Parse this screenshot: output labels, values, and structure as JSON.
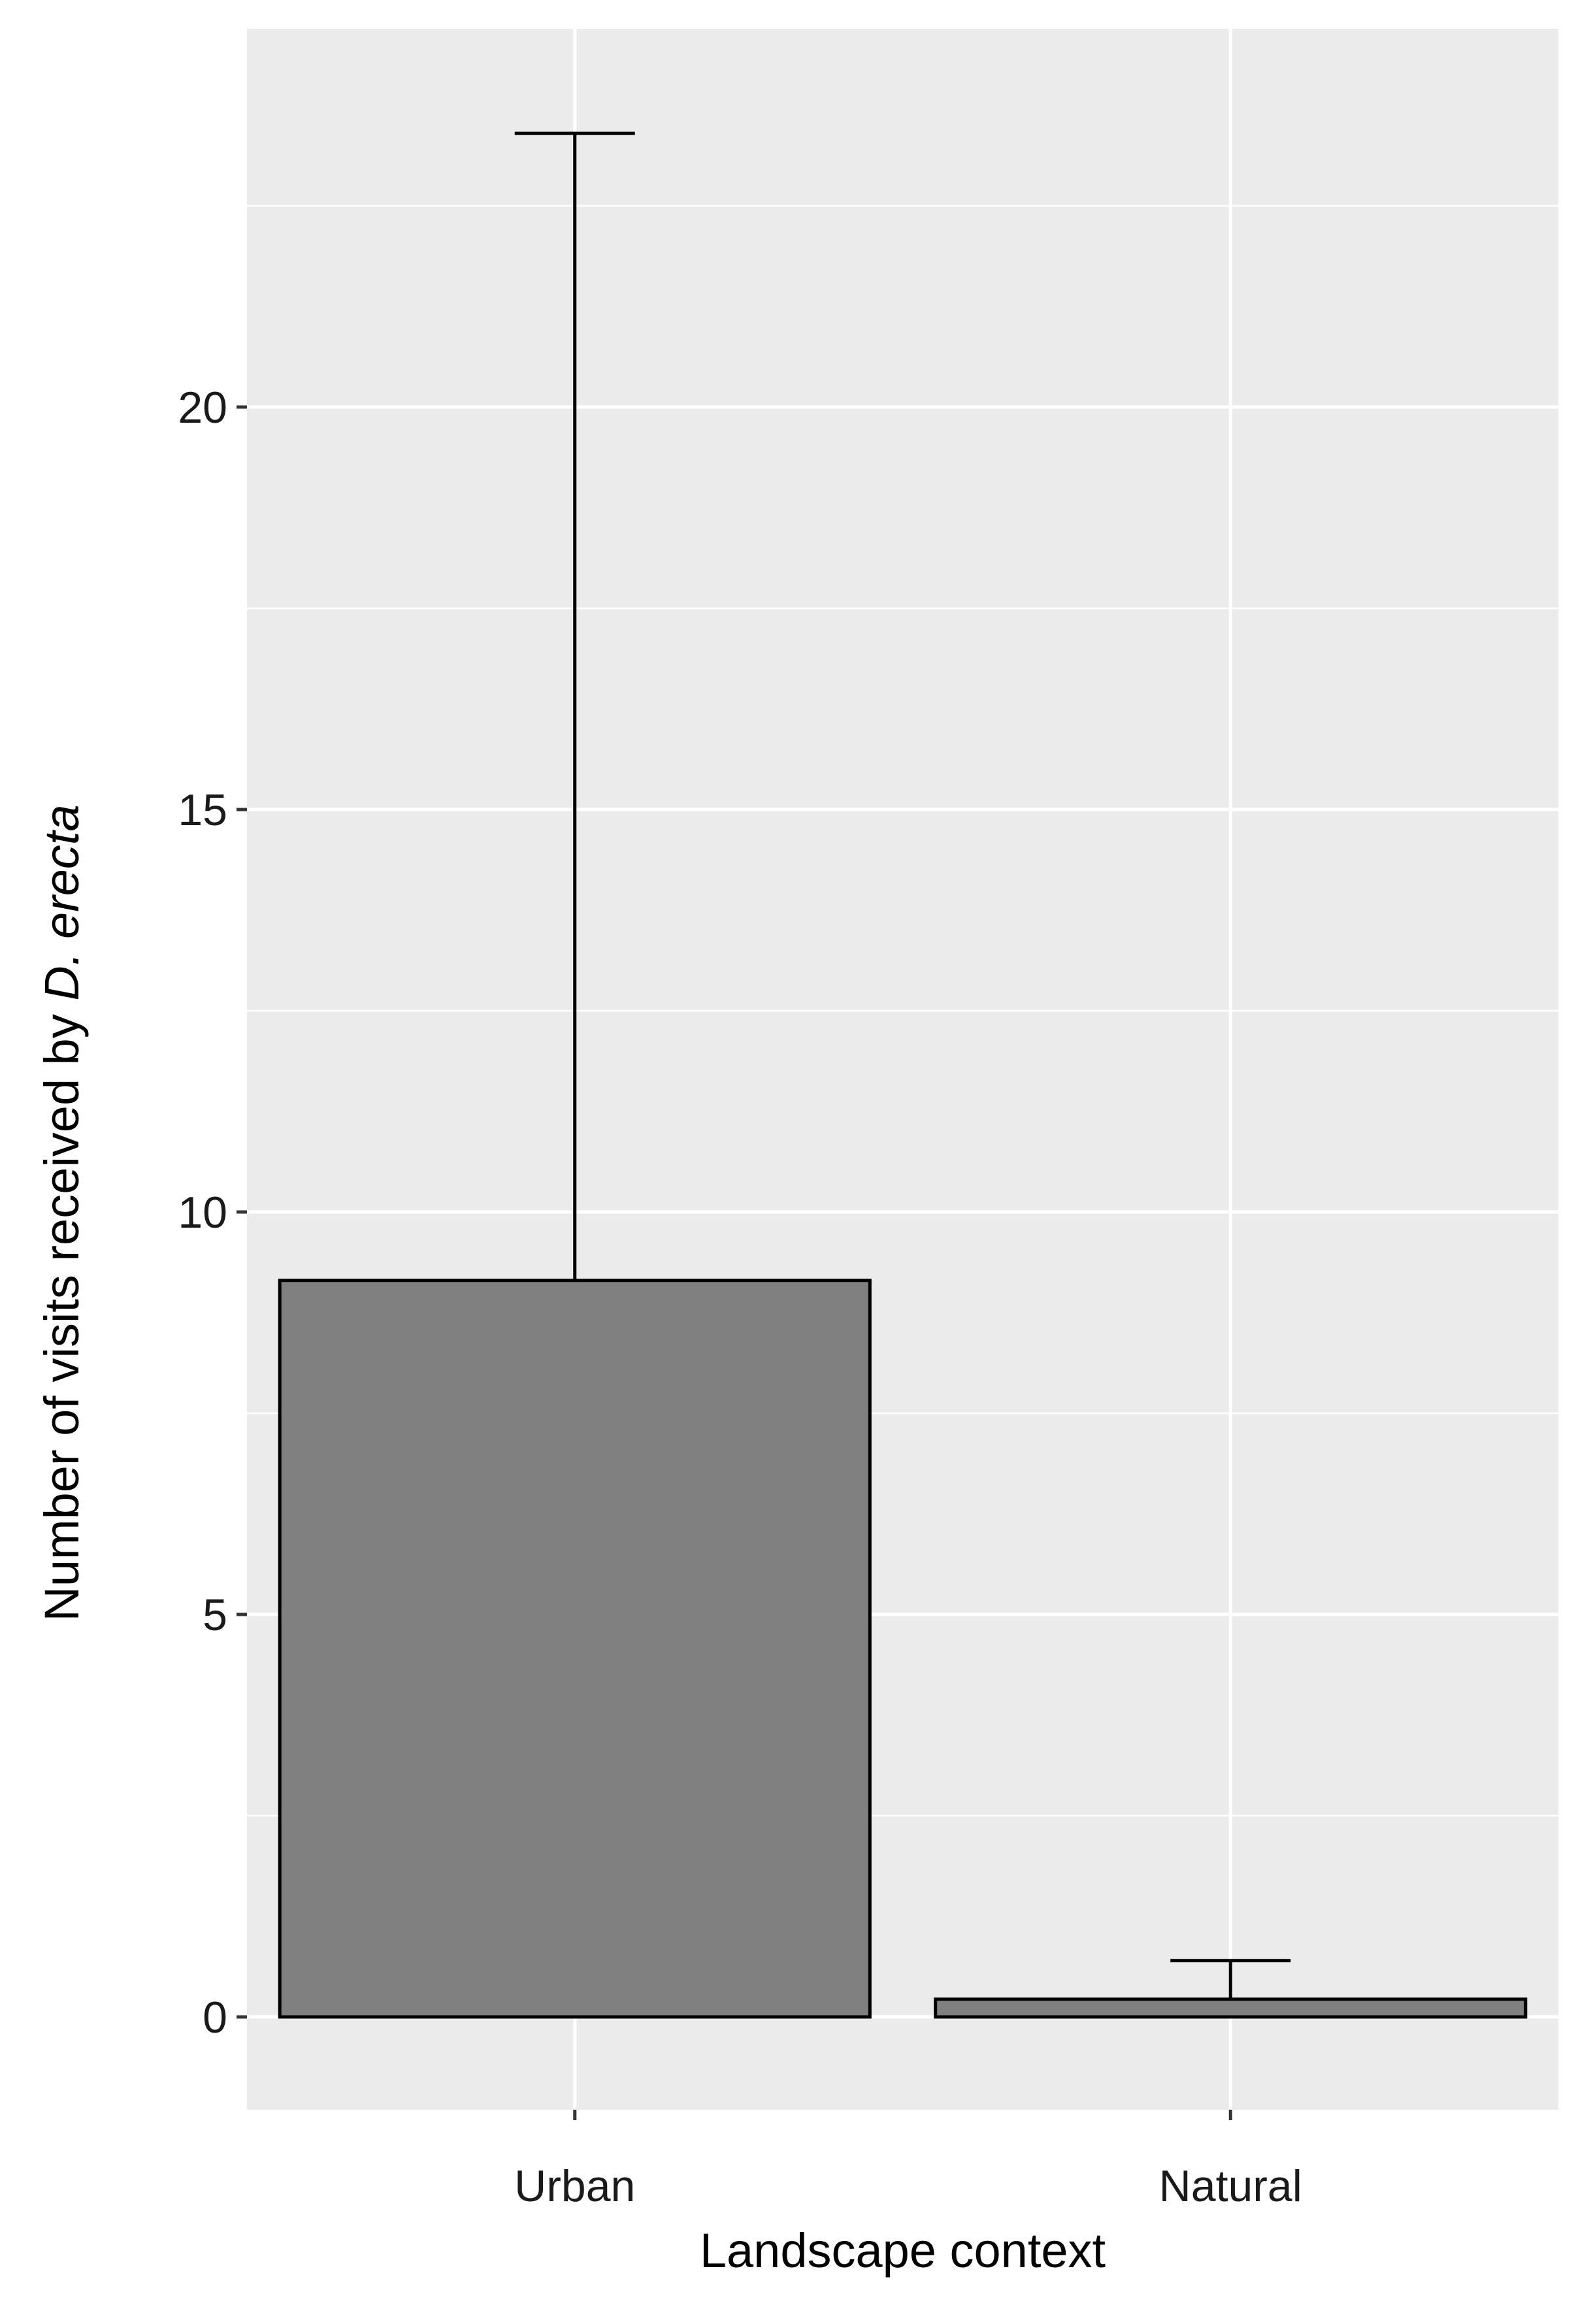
{
  "chart_data": {
    "type": "bar",
    "categories": [
      "Urban",
      "Natural"
    ],
    "values": [
      9.15,
      0.22
    ],
    "error_upper": [
      23.4,
      0.7
    ],
    "xlabel": "Landscape context",
    "ylabel": {
      "plain": "Number of visits received by ",
      "italic": "D. erecta"
    },
    "ylim": [
      -1.2,
      24.6
    ],
    "yticks": [
      0,
      5,
      10,
      15,
      20
    ],
    "ytick_labels": [
      "0",
      "5",
      "10",
      "15",
      "20"
    ],
    "grid": true,
    "legend": "none"
  },
  "colors": {
    "panel_background": "#ebebeb",
    "grid": "#ffffff",
    "bar_fill": "#808080",
    "bar_outline": "#000000",
    "tick": "#333333",
    "text": "#1a1a1a"
  }
}
